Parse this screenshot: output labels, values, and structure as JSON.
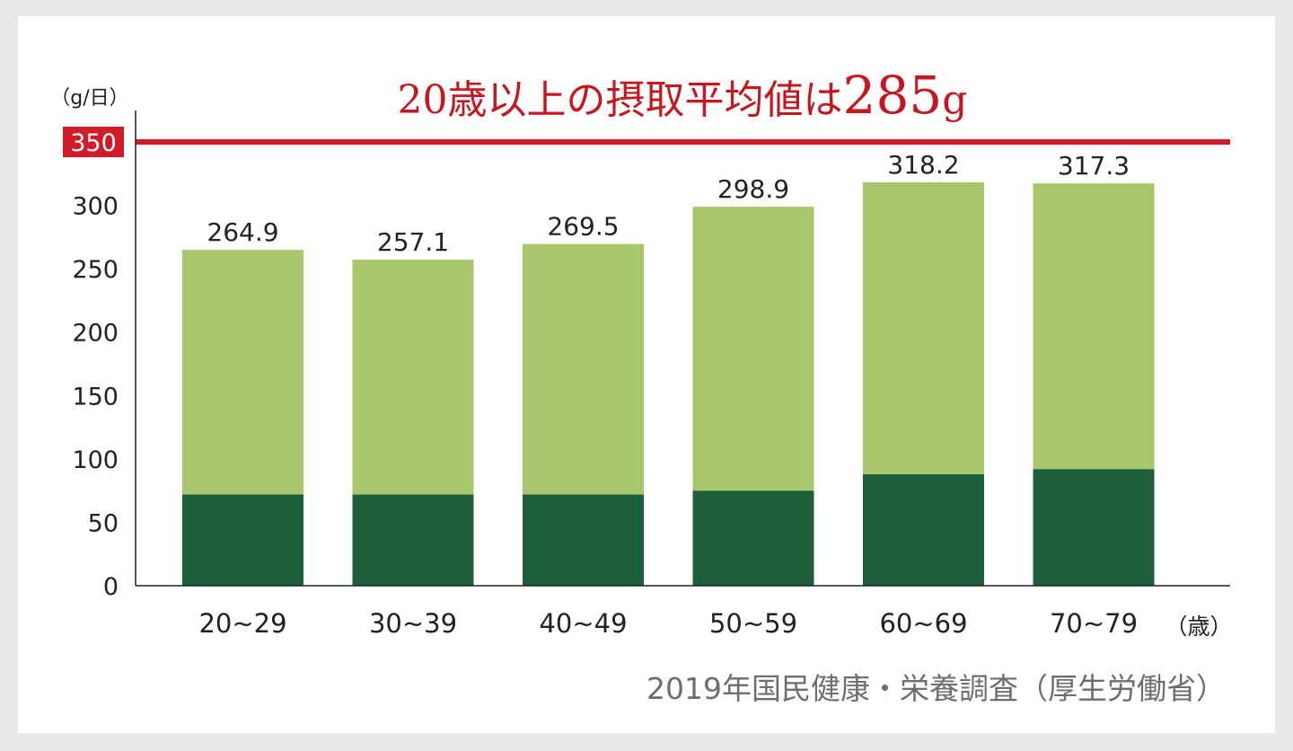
{
  "chart_data": {
    "type": "bar",
    "headline": "20歳以上の摂取平均値は",
    "headline_value": "285",
    "headline_unit": "g",
    "y_unit": "（g/日）",
    "x_unit": "（歳）",
    "source": "2019年国民健康・栄養調査（厚生労働省）",
    "categories": [
      "20~29",
      "30~39",
      "40~49",
      "50~59",
      "60~69",
      "70~79"
    ],
    "series": [
      {
        "values": [
          72,
          72,
          72,
          75,
          88,
          92
        ]
      },
      {
        "values": [
          192.9,
          185.1,
          197.5,
          223.9,
          230.2,
          225.3
        ]
      }
    ],
    "totals": [
      264.9,
      257.1,
      269.5,
      298.9,
      318.2,
      317.3
    ],
    "total_labels": [
      "264.9",
      "257.1",
      "269.5",
      "298.9",
      "318.2",
      "317.3"
    ],
    "ylim": [
      0,
      350
    ],
    "yticks": [
      "0",
      "50",
      "100",
      "150",
      "200",
      "250",
      "300"
    ],
    "target": {
      "value": 350,
      "label": "350"
    },
    "colors": {
      "bottom": "#1d5e3b",
      "top": "#a8c66c",
      "target": "#d21a28",
      "headline": "#c8161e",
      "source": "#6e6e6e",
      "text": "#222222"
    }
  }
}
